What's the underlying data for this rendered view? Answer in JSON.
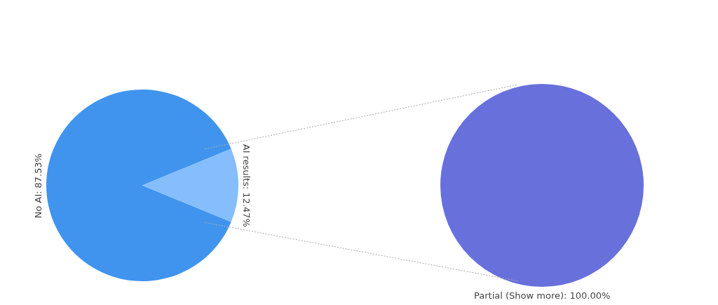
{
  "chart_data": [
    {
      "type": "pie",
      "categories": [
        "No AI",
        "AI results"
      ],
      "values": [
        87.53,
        12.47
      ],
      "colors": [
        "#4094ee",
        "#85bdfd"
      ],
      "value_labels": [
        "87.53%",
        "12.47%"
      ],
      "legend": false
    },
    {
      "type": "pie",
      "categories": [
        "Partial (Show more)"
      ],
      "values": [
        100
      ],
      "colors": [
        "#6870dc"
      ],
      "value_labels": [
        "100.00%"
      ],
      "legend": false
    }
  ]
}
